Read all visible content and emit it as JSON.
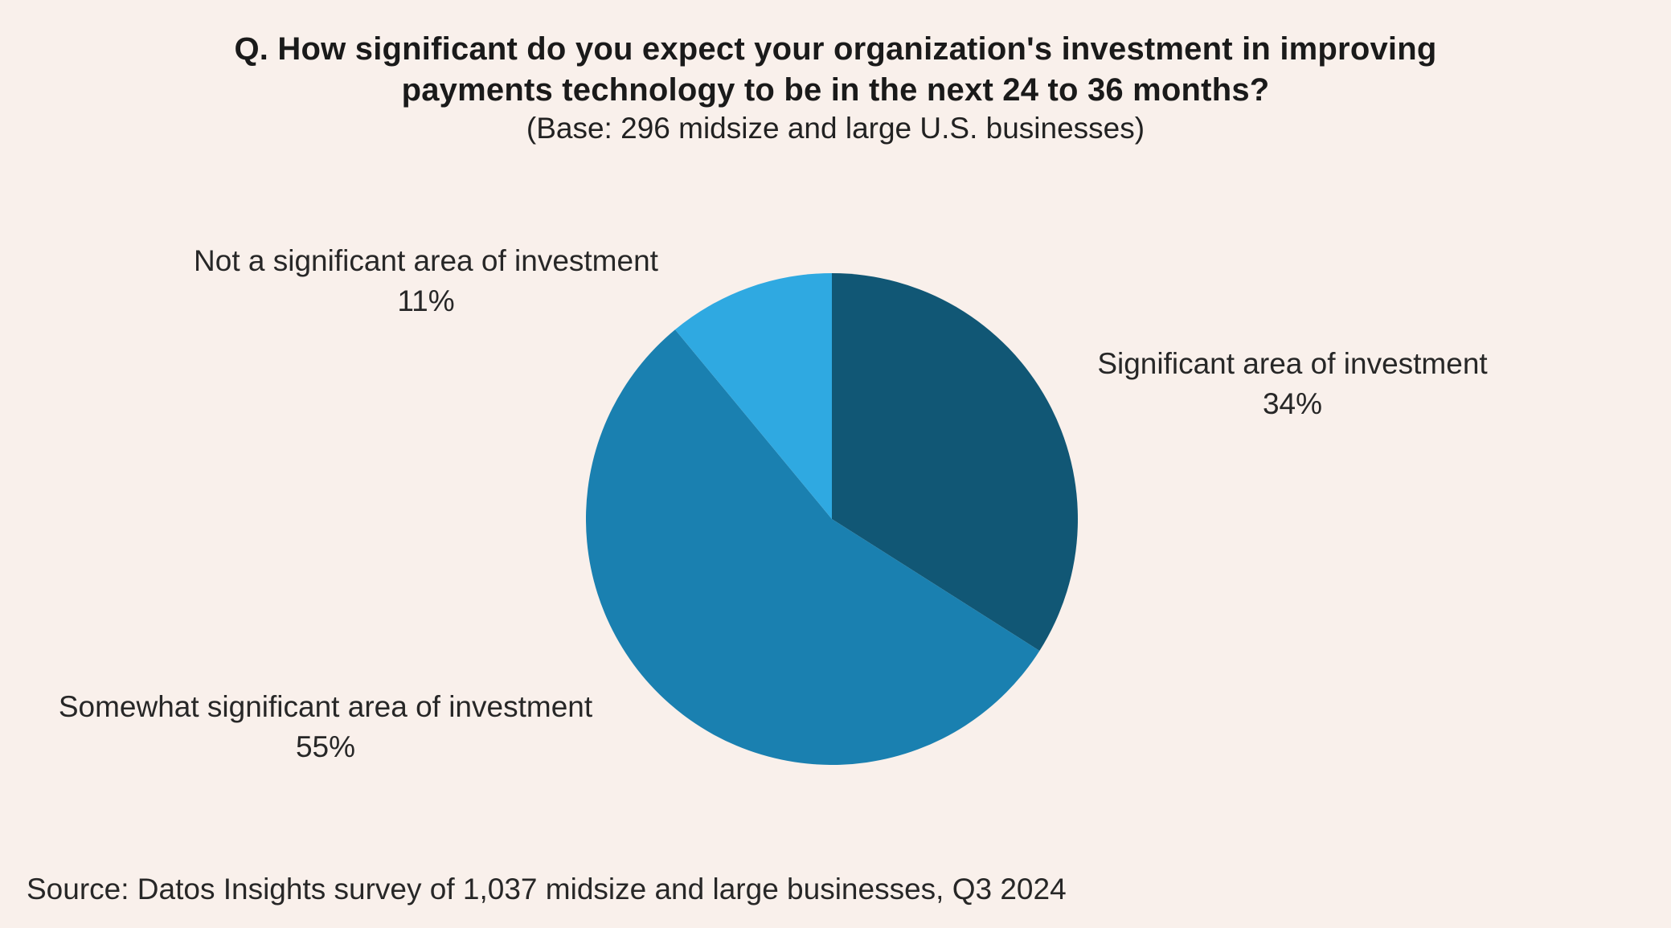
{
  "chart_data": {
    "type": "pie",
    "title": "Q. How significant do you expect your organization's investment in improving payments technology to be in the next 24 to 36 months?",
    "subtitle": "(Base: 296 midsize and large U.S. businesses)",
    "source": "Source: Datos Insights survey of 1,037 midsize and large businesses, Q3 2024",
    "slices": [
      {
        "label": "Significant area of investment",
        "value": 34,
        "display": "34%",
        "color": "#115775"
      },
      {
        "label": "Somewhat significant area of investment",
        "value": 55,
        "display": "55%",
        "color": "#1A80B0"
      },
      {
        "label": "Not a significant area of investment",
        "value": 11,
        "display": "11%",
        "color": "#2FA9E1"
      }
    ],
    "start_angle_deg": -90,
    "direction": "clockwise",
    "legend_position": "labels-around-pie",
    "background_color": "#F9F0EB",
    "xlabel": "",
    "ylabel": ""
  }
}
